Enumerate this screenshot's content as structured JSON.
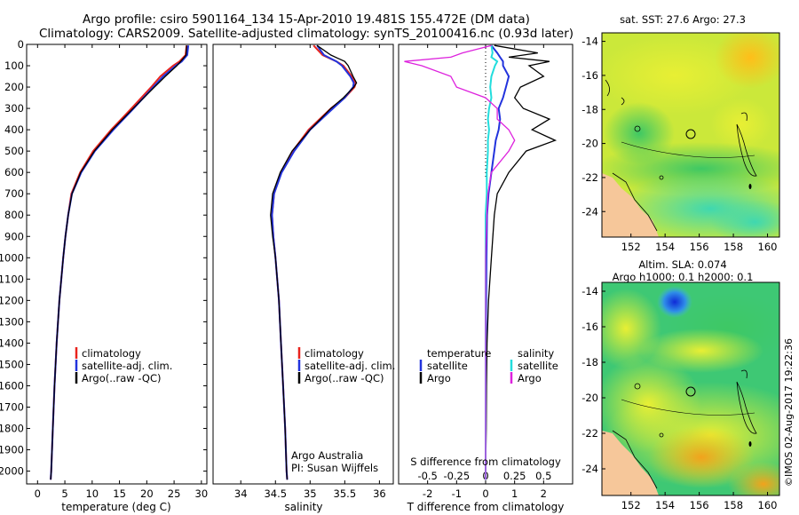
{
  "header": {
    "title_line1": "Argo profile: csiro 5901164_134 15-Apr-2010 19.481S 155.472E (DM data)",
    "title_line2": "Climatology: CARS2009. Satellite-adjusted climatology: synTS_20100416.nc (0.93d later)"
  },
  "colors": {
    "climatology": "#e8231d",
    "satellite": "#2233dd",
    "argo": "#000000",
    "cyan": "#22dddd",
    "magenta": "#dd22dd"
  },
  "legend_profiles": {
    "items": [
      "climatology",
      "satellite-adj. clim.",
      "Argo(..raw -QC)"
    ]
  },
  "legend_diff": {
    "temperature_header": "temperature",
    "salinity_header": "salinity",
    "t_satellite": "satellite",
    "t_argo": "Argo",
    "s_satellite": "satellite",
    "s_argo": "Argo"
  },
  "credits": {
    "line1": "Argo Australia",
    "line2": "PI: Susan Wijffels"
  },
  "side_label": "©IMOS 02-Aug-2017 19:22:36",
  "map_top": {
    "title": "sat. SST: 27.6  Argo: 27.3"
  },
  "map_bottom": {
    "title_line1": "Altim. SLA: 0.074",
    "title_line2": "Argo h1000: 0.1  h2000: 0.1"
  },
  "chart_data": [
    {
      "type": "line",
      "name": "temperature",
      "xlabel": "temperature (deg C)",
      "xlim": [
        -2,
        31
      ],
      "ylim": [
        0,
        2060
      ],
      "xticks": [
        0,
        5,
        10,
        15,
        20,
        25,
        30
      ],
      "yticks": [
        0,
        100,
        200,
        300,
        400,
        500,
        600,
        700,
        800,
        900,
        1000,
        1100,
        1200,
        1300,
        1400,
        1500,
        1600,
        1700,
        1800,
        1900,
        2000
      ],
      "depth": [
        5,
        50,
        80,
        100,
        150,
        200,
        300,
        400,
        500,
        600,
        700,
        800,
        900,
        1000,
        1200,
        1400,
        1600,
        1800,
        2000,
        2040
      ],
      "series": [
        {
          "name": "climatology",
          "values": [
            27.3,
            27.1,
            26.0,
            24.8,
            22.5,
            20.8,
            17.2,
            13.5,
            10.2,
            7.8,
            6.2,
            5.6,
            5.1,
            4.7,
            4.0,
            3.5,
            3.1,
            2.8,
            2.5,
            2.4
          ]
        },
        {
          "name": "satellite-adj. clim.",
          "values": [
            27.6,
            27.4,
            26.4,
            25.3,
            23.0,
            21.2,
            17.6,
            13.9,
            10.5,
            8.0,
            6.3,
            5.6,
            5.1,
            4.7,
            4.0,
            3.5,
            3.1,
            2.8,
            2.5,
            2.4
          ]
        },
        {
          "name": "Argo(..raw -QC)",
          "values": [
            27.3,
            27.2,
            26.2,
            25.5,
            23.4,
            21.4,
            17.5,
            13.7,
            10.4,
            7.9,
            6.3,
            5.6,
            5.1,
            4.7,
            4.0,
            3.5,
            3.1,
            2.8,
            2.5,
            2.4
          ]
        }
      ]
    },
    {
      "type": "line",
      "name": "salinity",
      "xlabel": "salinity",
      "xlim": [
        33.6,
        36.2
      ],
      "ylim": [
        0,
        2060
      ],
      "xticks": [
        34,
        34.5,
        35,
        35.5,
        36
      ],
      "depth": [
        5,
        50,
        80,
        100,
        150,
        180,
        200,
        250,
        300,
        400,
        500,
        600,
        700,
        800,
        900,
        1000,
        1200,
        1400,
        1600,
        1800,
        2000,
        2040
      ],
      "series": [
        {
          "name": "climatology",
          "values": [
            35.05,
            35.18,
            35.38,
            35.48,
            35.6,
            35.66,
            35.64,
            35.5,
            35.3,
            34.98,
            34.75,
            34.58,
            34.48,
            34.45,
            34.47,
            34.5,
            34.55,
            34.58,
            34.61,
            34.64,
            34.66,
            34.67
          ]
        },
        {
          "name": "satellite-adj. clim.",
          "values": [
            35.1,
            35.2,
            35.38,
            35.46,
            35.58,
            35.63,
            35.62,
            35.5,
            35.33,
            35.0,
            34.77,
            34.59,
            34.48,
            34.45,
            34.47,
            34.5,
            34.55,
            34.58,
            34.61,
            34.64,
            34.66,
            34.67
          ]
        },
        {
          "name": "Argo(..raw -QC)",
          "values": [
            35.1,
            35.3,
            35.5,
            35.55,
            35.62,
            35.67,
            35.63,
            35.48,
            35.3,
            35.0,
            34.74,
            34.57,
            34.46,
            34.43,
            34.46,
            34.5,
            34.55,
            34.58,
            34.61,
            34.64,
            34.66,
            34.67
          ]
        }
      ]
    },
    {
      "type": "line",
      "name": "difference from climatology",
      "xlabel": "T difference from climatology",
      "xlabel_top": "S difference from climatology",
      "xlim": [
        -3.0,
        3.0
      ],
      "ylim": [
        0,
        2060
      ],
      "x_T_ticks": [
        -2,
        -1,
        0,
        1,
        2
      ],
      "x_S_ticks": [
        "-0.5",
        "-0.25",
        "0",
        "0.25",
        "0.5"
      ],
      "depth": [
        5,
        40,
        60,
        80,
        100,
        150,
        200,
        250,
        300,
        350,
        400,
        450,
        500,
        600,
        700,
        800,
        1000,
        1200,
        1400,
        1600,
        1800,
        2000,
        2040
      ],
      "series": [
        {
          "name": "T satellite",
          "values": [
            0.2,
            0.4,
            0.5,
            0.6,
            0.6,
            0.8,
            0.7,
            0.6,
            0.45,
            0.5,
            0.45,
            0.35,
            0.3,
            0.2,
            0.1,
            0.05,
            0.03,
            0.02,
            0.01,
            0.0,
            0.0,
            0.0,
            0.0
          ]
        },
        {
          "name": "T Argo",
          "values": [
            0.3,
            1.8,
            0.8,
            2.2,
            1.5,
            2.0,
            1.2,
            1.0,
            1.3,
            2.2,
            1.6,
            2.4,
            1.4,
            0.8,
            0.4,
            0.3,
            0.2,
            0.1,
            0.05,
            0.03,
            0.02,
            0.0,
            0.0
          ]
        },
        {
          "name": "S satellite",
          "values": [
            0.05,
            0.06,
            0.05,
            0.1,
            0.08,
            0.05,
            0.04,
            0.05,
            0.03,
            0.02,
            0.03,
            0.02,
            0.02,
            0.01,
            0.01,
            0.0,
            0.0,
            0.0,
            0.0,
            0.0,
            0.0,
            0.0,
            0.0
          ]
        },
        {
          "name": "S Argo",
          "values": [
            0.05,
            -0.2,
            -0.3,
            -0.7,
            -0.55,
            -0.3,
            -0.25,
            0.0,
            0.1,
            0.1,
            0.2,
            0.25,
            0.2,
            0.05,
            0.02,
            0.01,
            0.0,
            0.0,
            0.0,
            0.0,
            0.0,
            0.0,
            0.0
          ]
        }
      ]
    },
    {
      "type": "heatmap",
      "name": "sat. SST map",
      "xticks": [
        152,
        154,
        156,
        158,
        160
      ],
      "yticks": [
        -14,
        -16,
        -18,
        -20,
        -22,
        -24
      ],
      "xlim": [
        150.3,
        160.7
      ],
      "ylim": [
        -25.5,
        -13.5
      ],
      "float_position": {
        "lon": 155.472,
        "lat": -19.481
      }
    },
    {
      "type": "heatmap",
      "name": "Altim. SLA map",
      "xticks": [
        152,
        154,
        156,
        158,
        160
      ],
      "yticks": [
        -14,
        -16,
        -18,
        -20,
        -22,
        -24
      ],
      "xlim": [
        150.3,
        160.7
      ],
      "ylim": [
        -25.5,
        -13.5
      ],
      "float_position": {
        "lon": 155.472,
        "lat": -19.481
      }
    }
  ]
}
